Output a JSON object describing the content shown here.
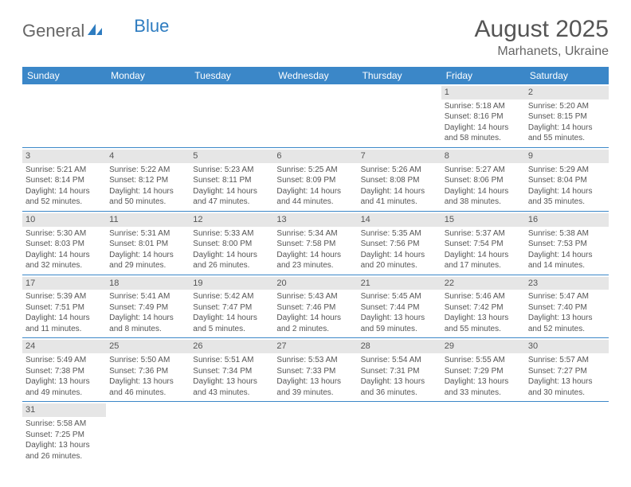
{
  "logo": {
    "general": "General",
    "blue": "Blue"
  },
  "title": "August 2025",
  "location": "Marhanets, Ukraine",
  "headers": [
    "Sunday",
    "Monday",
    "Tuesday",
    "Wednesday",
    "Thursday",
    "Friday",
    "Saturday"
  ],
  "colors": {
    "header_bg": "#3b87c8",
    "header_fg": "#ffffff",
    "border": "#3b87c8",
    "daynum_bg": "#e6e6e6",
    "text": "#555555",
    "logo_blue": "#2e7cc0"
  },
  "weeks": [
    [
      null,
      null,
      null,
      null,
      null,
      {
        "n": "1",
        "sr": "5:18 AM",
        "ss": "8:16 PM",
        "dl": "14 hours and 58 minutes."
      },
      {
        "n": "2",
        "sr": "5:20 AM",
        "ss": "8:15 PM",
        "dl": "14 hours and 55 minutes."
      }
    ],
    [
      {
        "n": "3",
        "sr": "5:21 AM",
        "ss": "8:14 PM",
        "dl": "14 hours and 52 minutes."
      },
      {
        "n": "4",
        "sr": "5:22 AM",
        "ss": "8:12 PM",
        "dl": "14 hours and 50 minutes."
      },
      {
        "n": "5",
        "sr": "5:23 AM",
        "ss": "8:11 PM",
        "dl": "14 hours and 47 minutes."
      },
      {
        "n": "6",
        "sr": "5:25 AM",
        "ss": "8:09 PM",
        "dl": "14 hours and 44 minutes."
      },
      {
        "n": "7",
        "sr": "5:26 AM",
        "ss": "8:08 PM",
        "dl": "14 hours and 41 minutes."
      },
      {
        "n": "8",
        "sr": "5:27 AM",
        "ss": "8:06 PM",
        "dl": "14 hours and 38 minutes."
      },
      {
        "n": "9",
        "sr": "5:29 AM",
        "ss": "8:04 PM",
        "dl": "14 hours and 35 minutes."
      }
    ],
    [
      {
        "n": "10",
        "sr": "5:30 AM",
        "ss": "8:03 PM",
        "dl": "14 hours and 32 minutes."
      },
      {
        "n": "11",
        "sr": "5:31 AM",
        "ss": "8:01 PM",
        "dl": "14 hours and 29 minutes."
      },
      {
        "n": "12",
        "sr": "5:33 AM",
        "ss": "8:00 PM",
        "dl": "14 hours and 26 minutes."
      },
      {
        "n": "13",
        "sr": "5:34 AM",
        "ss": "7:58 PM",
        "dl": "14 hours and 23 minutes."
      },
      {
        "n": "14",
        "sr": "5:35 AM",
        "ss": "7:56 PM",
        "dl": "14 hours and 20 minutes."
      },
      {
        "n": "15",
        "sr": "5:37 AM",
        "ss": "7:54 PM",
        "dl": "14 hours and 17 minutes."
      },
      {
        "n": "16",
        "sr": "5:38 AM",
        "ss": "7:53 PM",
        "dl": "14 hours and 14 minutes."
      }
    ],
    [
      {
        "n": "17",
        "sr": "5:39 AM",
        "ss": "7:51 PM",
        "dl": "14 hours and 11 minutes."
      },
      {
        "n": "18",
        "sr": "5:41 AM",
        "ss": "7:49 PM",
        "dl": "14 hours and 8 minutes."
      },
      {
        "n": "19",
        "sr": "5:42 AM",
        "ss": "7:47 PM",
        "dl": "14 hours and 5 minutes."
      },
      {
        "n": "20",
        "sr": "5:43 AM",
        "ss": "7:46 PM",
        "dl": "14 hours and 2 minutes."
      },
      {
        "n": "21",
        "sr": "5:45 AM",
        "ss": "7:44 PM",
        "dl": "13 hours and 59 minutes."
      },
      {
        "n": "22",
        "sr": "5:46 AM",
        "ss": "7:42 PM",
        "dl": "13 hours and 55 minutes."
      },
      {
        "n": "23",
        "sr": "5:47 AM",
        "ss": "7:40 PM",
        "dl": "13 hours and 52 minutes."
      }
    ],
    [
      {
        "n": "24",
        "sr": "5:49 AM",
        "ss": "7:38 PM",
        "dl": "13 hours and 49 minutes."
      },
      {
        "n": "25",
        "sr": "5:50 AM",
        "ss": "7:36 PM",
        "dl": "13 hours and 46 minutes."
      },
      {
        "n": "26",
        "sr": "5:51 AM",
        "ss": "7:34 PM",
        "dl": "13 hours and 43 minutes."
      },
      {
        "n": "27",
        "sr": "5:53 AM",
        "ss": "7:33 PM",
        "dl": "13 hours and 39 minutes."
      },
      {
        "n": "28",
        "sr": "5:54 AM",
        "ss": "7:31 PM",
        "dl": "13 hours and 36 minutes."
      },
      {
        "n": "29",
        "sr": "5:55 AM",
        "ss": "7:29 PM",
        "dl": "13 hours and 33 minutes."
      },
      {
        "n": "30",
        "sr": "5:57 AM",
        "ss": "7:27 PM",
        "dl": "13 hours and 30 minutes."
      }
    ],
    [
      {
        "n": "31",
        "sr": "5:58 AM",
        "ss": "7:25 PM",
        "dl": "13 hours and 26 minutes."
      },
      null,
      null,
      null,
      null,
      null,
      null
    ]
  ],
  "labels": {
    "sunrise": "Sunrise: ",
    "sunset": "Sunset: ",
    "daylight": "Daylight: "
  }
}
